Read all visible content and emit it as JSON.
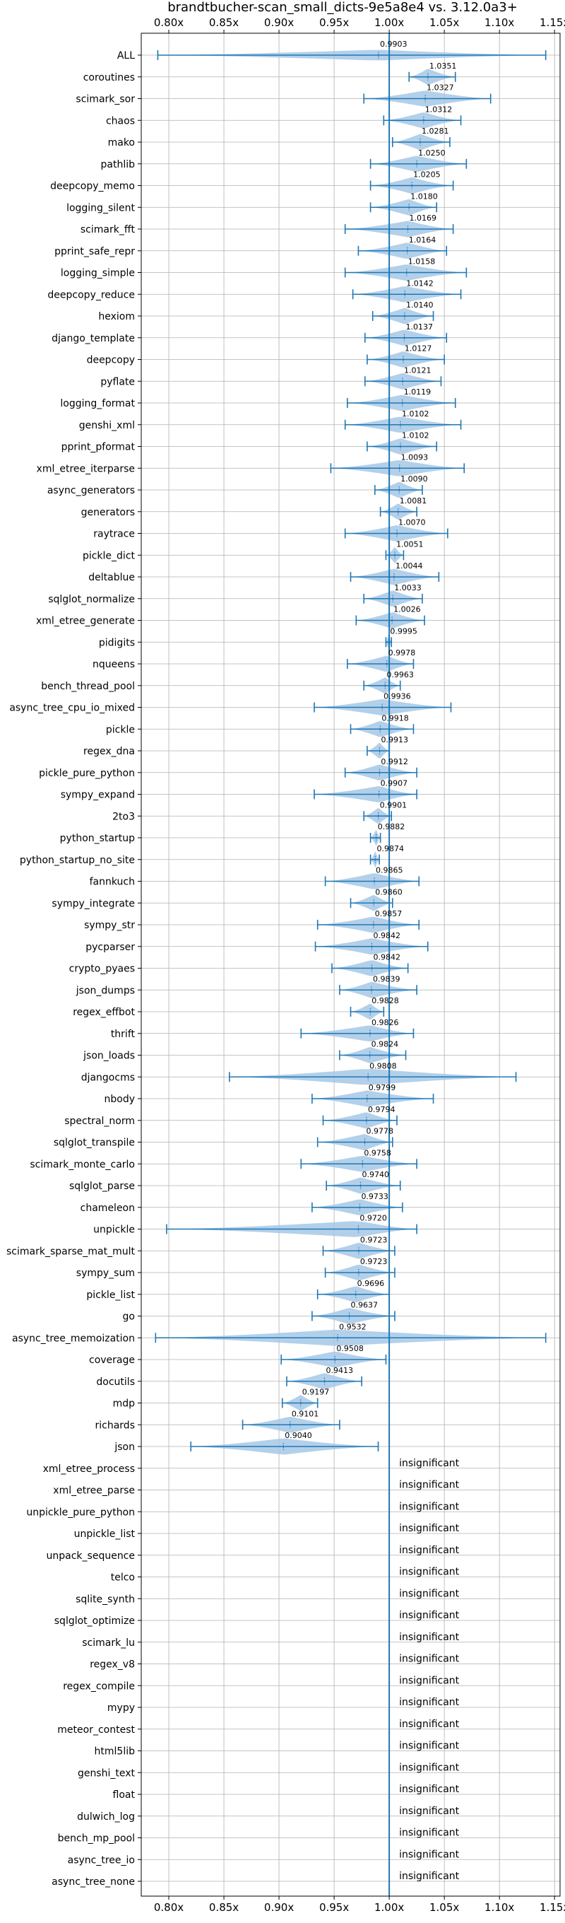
{
  "chart_data": {
    "type": "violin",
    "title": "brandtbucher-scan_small_dicts-9e5a8e4 vs. 3.12.0a3+",
    "xlim": [
      0.775,
      1.155
    ],
    "x_ticks": [
      0.8,
      0.85,
      0.9,
      0.95,
      1.0,
      1.05,
      1.1,
      1.15
    ],
    "x_tick_labels": [
      "0.80x",
      "0.85x",
      "0.90x",
      "0.95x",
      "1.00x",
      "1.05x",
      "1.10x",
      "1.15x"
    ],
    "reference_line": 1.0,
    "grid": true,
    "colors": {
      "accent": "#1f77b4",
      "violin": "#a6c8e6",
      "grid": "#b0b0b0"
    },
    "insignificant_text": "insignificant",
    "benchmarks": [
      {
        "name": "ALL",
        "value": 0.9903,
        "min": 0.79,
        "max": 1.142,
        "width": 0.6
      },
      {
        "name": "coroutines",
        "value": 1.0351,
        "min": 1.018,
        "max": 1.06,
        "width": 0.9
      },
      {
        "name": "scimark_sor",
        "value": 1.0327,
        "min": 0.977,
        "max": 1.092,
        "width": 0.9
      },
      {
        "name": "chaos",
        "value": 1.0312,
        "min": 0.995,
        "max": 1.065,
        "width": 0.9
      },
      {
        "name": "mako",
        "value": 1.0281,
        "min": 1.003,
        "max": 1.055,
        "width": 0.9
      },
      {
        "name": "pathlib",
        "value": 1.025,
        "min": 0.983,
        "max": 1.07,
        "width": 0.9
      },
      {
        "name": "deepcopy_memo",
        "value": 1.0205,
        "min": 0.983,
        "max": 1.058,
        "width": 0.9
      },
      {
        "name": "logging_silent",
        "value": 1.018,
        "min": 0.983,
        "max": 1.043,
        "width": 0.9
      },
      {
        "name": "scimark_fft",
        "value": 1.0169,
        "min": 0.96,
        "max": 1.058,
        "width": 0.9
      },
      {
        "name": "pprint_safe_repr",
        "value": 1.0164,
        "min": 0.972,
        "max": 1.052,
        "width": 0.9
      },
      {
        "name": "logging_simple",
        "value": 1.0158,
        "min": 0.96,
        "max": 1.07,
        "width": 0.9
      },
      {
        "name": "deepcopy_reduce",
        "value": 1.0142,
        "min": 0.967,
        "max": 1.065,
        "width": 0.9
      },
      {
        "name": "hexiom",
        "value": 1.014,
        "min": 0.985,
        "max": 1.04,
        "width": 0.9
      },
      {
        "name": "django_template",
        "value": 1.0137,
        "min": 0.978,
        "max": 1.052,
        "width": 0.9
      },
      {
        "name": "deepcopy",
        "value": 1.0127,
        "min": 0.98,
        "max": 1.05,
        "width": 0.9
      },
      {
        "name": "pyflate",
        "value": 1.0121,
        "min": 0.978,
        "max": 1.047,
        "width": 0.9
      },
      {
        "name": "logging_format",
        "value": 1.0119,
        "min": 0.962,
        "max": 1.06,
        "width": 0.9
      },
      {
        "name": "genshi_xml",
        "value": 1.0102,
        "min": 0.96,
        "max": 1.065,
        "width": 0.9
      },
      {
        "name": "pprint_pformat",
        "value": 1.0102,
        "min": 0.98,
        "max": 1.043,
        "width": 0.9
      },
      {
        "name": "xml_etree_iterparse",
        "value": 1.0093,
        "min": 0.947,
        "max": 1.068,
        "width": 0.9
      },
      {
        "name": "async_generators",
        "value": 1.009,
        "min": 0.987,
        "max": 1.03,
        "width": 0.9
      },
      {
        "name": "generators",
        "value": 1.0081,
        "min": 0.992,
        "max": 1.025,
        "width": 0.9
      },
      {
        "name": "raytrace",
        "value": 1.007,
        "min": 0.96,
        "max": 1.053,
        "width": 0.9
      },
      {
        "name": "pickle_dict",
        "value": 1.0051,
        "min": 0.997,
        "max": 1.013,
        "width": 0.9
      },
      {
        "name": "deltablue",
        "value": 1.0044,
        "min": 0.965,
        "max": 1.045,
        "width": 0.9
      },
      {
        "name": "sqlglot_normalize",
        "value": 1.0033,
        "min": 0.977,
        "max": 1.03,
        "width": 0.9
      },
      {
        "name": "xml_etree_generate",
        "value": 1.0026,
        "min": 0.97,
        "max": 1.032,
        "width": 0.9
      },
      {
        "name": "pidigits",
        "value": 0.9995,
        "min": 0.997,
        "max": 1.002,
        "width": 0.9
      },
      {
        "name": "nqueens",
        "value": 0.9978,
        "min": 0.962,
        "max": 1.022,
        "width": 0.9
      },
      {
        "name": "bench_thread_pool",
        "value": 0.9963,
        "min": 0.977,
        "max": 1.01,
        "width": 0.9
      },
      {
        "name": "async_tree_cpu_io_mixed",
        "value": 0.9936,
        "min": 0.932,
        "max": 1.056,
        "width": 0.9
      },
      {
        "name": "pickle",
        "value": 0.9918,
        "min": 0.965,
        "max": 1.022,
        "width": 0.9
      },
      {
        "name": "regex_dna",
        "value": 0.9913,
        "min": 0.98,
        "max": 1.0,
        "width": 0.9
      },
      {
        "name": "pickle_pure_python",
        "value": 0.9912,
        "min": 0.96,
        "max": 1.025,
        "width": 0.9
      },
      {
        "name": "sympy_expand",
        "value": 0.9907,
        "min": 0.932,
        "max": 1.025,
        "width": 0.9
      },
      {
        "name": "2to3",
        "value": 0.9901,
        "min": 0.977,
        "max": 1.002,
        "width": 0.9
      },
      {
        "name": "python_startup",
        "value": 0.9882,
        "min": 0.983,
        "max": 0.992,
        "width": 0.9
      },
      {
        "name": "python_startup_no_site",
        "value": 0.9874,
        "min": 0.983,
        "max": 0.991,
        "width": 0.9
      },
      {
        "name": "fannkuch",
        "value": 0.9865,
        "min": 0.942,
        "max": 1.027,
        "width": 0.9
      },
      {
        "name": "sympy_integrate",
        "value": 0.986,
        "min": 0.965,
        "max": 1.003,
        "width": 0.9
      },
      {
        "name": "sympy_str",
        "value": 0.9857,
        "min": 0.935,
        "max": 1.027,
        "width": 0.9
      },
      {
        "name": "pycparser",
        "value": 0.9842,
        "min": 0.933,
        "max": 1.035,
        "width": 0.9
      },
      {
        "name": "crypto_pyaes",
        "value": 0.9842,
        "min": 0.948,
        "max": 1.017,
        "width": 0.9
      },
      {
        "name": "json_dumps",
        "value": 0.9839,
        "min": 0.955,
        "max": 1.025,
        "width": 0.9
      },
      {
        "name": "regex_effbot",
        "value": 0.9828,
        "min": 0.965,
        "max": 0.995,
        "width": 0.9
      },
      {
        "name": "thrift",
        "value": 0.9826,
        "min": 0.92,
        "max": 1.022,
        "width": 0.9
      },
      {
        "name": "json_loads",
        "value": 0.9824,
        "min": 0.955,
        "max": 1.015,
        "width": 0.9
      },
      {
        "name": "djangocms",
        "value": 0.9808,
        "min": 0.855,
        "max": 1.115,
        "width": 0.9
      },
      {
        "name": "nbody",
        "value": 0.9799,
        "min": 0.93,
        "max": 1.04,
        "width": 0.9
      },
      {
        "name": "spectral_norm",
        "value": 0.9794,
        "min": 0.94,
        "max": 1.007,
        "width": 0.9
      },
      {
        "name": "sqlglot_transpile",
        "value": 0.9778,
        "min": 0.935,
        "max": 1.003,
        "width": 0.9
      },
      {
        "name": "scimark_monte_carlo",
        "value": 0.9758,
        "min": 0.92,
        "max": 1.025,
        "width": 0.9
      },
      {
        "name": "sqlglot_parse",
        "value": 0.974,
        "min": 0.943,
        "max": 1.01,
        "width": 0.9
      },
      {
        "name": "chameleon",
        "value": 0.9733,
        "min": 0.93,
        "max": 1.012,
        "width": 0.9
      },
      {
        "name": "unpickle",
        "value": 0.972,
        "min": 0.798,
        "max": 1.025,
        "width": 0.9
      },
      {
        "name": "scimark_sparse_mat_mult",
        "value": 0.9723,
        "min": 0.94,
        "max": 1.005,
        "width": 0.9
      },
      {
        "name": "sympy_sum",
        "value": 0.9723,
        "min": 0.942,
        "max": 1.005,
        "width": 0.9
      },
      {
        "name": "pickle_list",
        "value": 0.9696,
        "min": 0.935,
        "max": 1.0,
        "width": 0.9
      },
      {
        "name": "go",
        "value": 0.9637,
        "min": 0.93,
        "max": 1.005,
        "width": 0.9
      },
      {
        "name": "async_tree_memoization",
        "value": 0.9532,
        "min": 0.788,
        "max": 1.142,
        "width": 0.9
      },
      {
        "name": "coverage",
        "value": 0.9508,
        "min": 0.902,
        "max": 0.997,
        "width": 0.9
      },
      {
        "name": "docutils",
        "value": 0.9413,
        "min": 0.907,
        "max": 0.975,
        "width": 0.9
      },
      {
        "name": "mdp",
        "value": 0.9197,
        "min": 0.903,
        "max": 0.935,
        "width": 0.9
      },
      {
        "name": "richards",
        "value": 0.9101,
        "min": 0.867,
        "max": 0.955,
        "width": 0.9
      },
      {
        "name": "json",
        "value": 0.904,
        "min": 0.82,
        "max": 0.99,
        "width": 0.9
      }
    ],
    "insignificant": [
      "xml_etree_process",
      "xml_etree_parse",
      "unpickle_pure_python",
      "unpickle_list",
      "unpack_sequence",
      "telco",
      "sqlite_synth",
      "sqlglot_optimize",
      "scimark_lu",
      "regex_v8",
      "regex_compile",
      "mypy",
      "meteor_contest",
      "html5lib",
      "genshi_text",
      "float",
      "dulwich_log",
      "bench_mp_pool",
      "async_tree_io",
      "async_tree_none"
    ]
  }
}
